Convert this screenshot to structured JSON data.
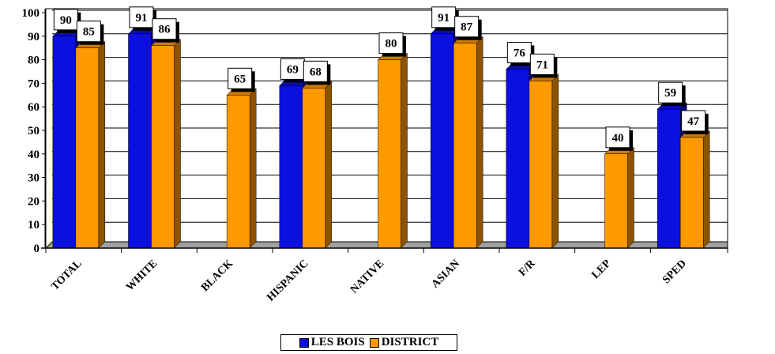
{
  "chart_data": {
    "type": "bar",
    "categories": [
      "TOTAL",
      "WHITE",
      "BLACK",
      "HISPANIC",
      "NATIVE",
      "ASIAN",
      "F/R",
      "LEP",
      "SPED"
    ],
    "series": [
      {
        "name": "LES BOIS",
        "color": "#0b0fe0",
        "values": [
          90,
          91,
          null,
          69,
          null,
          91,
          76,
          null,
          59
        ]
      },
      {
        "name": "DISTRICT",
        "color": "#ff9900",
        "values": [
          85,
          86,
          65,
          68,
          80,
          87,
          71,
          40,
          47
        ]
      }
    ],
    "ylim": [
      0,
      100
    ],
    "yticks": [
      0,
      10,
      20,
      30,
      40,
      50,
      60,
      70,
      80,
      90,
      100
    ],
    "grid": true,
    "legend": "bottom",
    "title": "",
    "xlabel": "",
    "ylabel": ""
  }
}
